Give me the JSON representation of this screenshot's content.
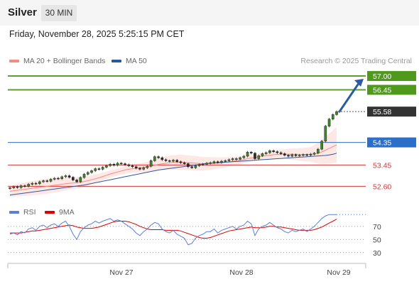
{
  "header": {
    "instrument": "Silver",
    "timeframe": "30 MIN",
    "datetime": "Friday, November 28, 2025 5:25:15 PM CET"
  },
  "legend": {
    "ma20": "MA 20 + Bollinger Bands",
    "ma50": "MA 50",
    "credit": "Research © 2025 Trading Central",
    "colors": {
      "ma20": "#f28b82",
      "ma50": "#2c5aa0"
    }
  },
  "rsi_legend": {
    "rsi": "RSI",
    "ma9": "9MA",
    "colors": {
      "rsi": "#5b7fd6",
      "ma9": "#e00000"
    }
  },
  "chart_data": [
    {
      "type": "candlestick",
      "title": "",
      "x_ticks": [
        "Nov 27",
        "Nov 28",
        "Nov 29"
      ],
      "ylim": [
        52.1,
        57.2
      ],
      "levels": [
        {
          "value": 57.0,
          "label": "57.00",
          "kind": "target",
          "color": "#5aa02c"
        },
        {
          "value": 56.45,
          "label": "56.45",
          "kind": "target",
          "color": "#5aa02c"
        },
        {
          "value": 55.58,
          "label": "55.58",
          "kind": "last",
          "color": "#333333"
        },
        {
          "value": 54.35,
          "label": "54.35",
          "kind": "pivot",
          "color": "#2c6fc9"
        },
        {
          "value": 53.45,
          "label": "53.45",
          "kind": "support",
          "color": "#d23a3a"
        },
        {
          "value": 52.6,
          "label": "52.60",
          "kind": "support",
          "color": "#d23a3a"
        }
      ],
      "close": [
        52.54,
        52.58,
        52.55,
        52.62,
        52.6,
        52.68,
        52.72,
        52.7,
        52.78,
        52.82,
        52.8,
        52.88,
        52.92,
        52.9,
        52.98,
        53.02,
        52.96,
        52.85,
        52.78,
        52.95,
        53.08,
        53.15,
        53.22,
        53.3,
        53.28,
        53.36,
        53.42,
        53.48,
        53.44,
        53.52,
        53.5,
        53.46,
        53.42,
        53.38,
        53.32,
        53.28,
        53.34,
        53.4,
        53.62,
        53.78,
        53.74,
        53.66,
        53.62,
        53.6,
        53.64,
        53.58,
        53.54,
        53.5,
        53.38,
        53.34,
        53.42,
        53.46,
        53.48,
        53.52,
        53.54,
        53.58,
        53.55,
        53.6,
        53.62,
        53.66,
        53.7,
        53.68,
        53.74,
        53.8,
        53.96,
        53.92,
        53.7,
        53.82,
        53.9,
        53.94,
        54.02,
        53.98,
        53.94,
        53.9,
        53.84,
        53.8,
        53.86,
        53.82,
        53.84,
        53.86,
        53.84,
        53.88,
        53.92,
        54.08,
        54.4,
        55.0,
        55.28,
        55.46,
        55.58
      ],
      "ma20": [
        52.4,
        52.42,
        52.44,
        52.46,
        52.48,
        52.5,
        52.52,
        52.54,
        52.56,
        52.58,
        52.6,
        52.62,
        52.64,
        52.66,
        52.68,
        52.7,
        52.72,
        52.73,
        52.74,
        52.76,
        52.79,
        52.82,
        52.86,
        52.9,
        52.94,
        52.99,
        53.04,
        53.09,
        53.13,
        53.17,
        53.21,
        53.25,
        53.28,
        53.3,
        53.32,
        53.34,
        53.35,
        53.37,
        53.4,
        53.44,
        53.47,
        53.5,
        53.52,
        53.54,
        53.55,
        53.56,
        53.56,
        53.55,
        53.54,
        53.53,
        53.52,
        53.51,
        53.5,
        53.5,
        53.51,
        53.52,
        53.53,
        53.54,
        53.56,
        53.58,
        53.6,
        53.62,
        53.64,
        53.66,
        53.7,
        53.73,
        53.75,
        53.78,
        53.8,
        53.82,
        53.84,
        53.86,
        53.87,
        53.88,
        53.88,
        53.88,
        53.88,
        53.88,
        53.87,
        53.87,
        53.87,
        53.88,
        53.89,
        53.92,
        53.97,
        54.04,
        54.11,
        54.18,
        54.25
      ],
      "ma50": [
        52.25,
        52.27,
        52.29,
        52.31,
        52.33,
        52.35,
        52.37,
        52.39,
        52.41,
        52.43,
        52.45,
        52.47,
        52.49,
        52.51,
        52.53,
        52.55,
        52.57,
        52.59,
        52.61,
        52.63,
        52.65,
        52.68,
        52.71,
        52.74,
        52.77,
        52.8,
        52.83,
        52.86,
        52.89,
        52.92,
        52.95,
        52.98,
        53.01,
        53.04,
        53.07,
        53.1,
        53.13,
        53.16,
        53.19,
        53.22,
        53.25,
        53.27,
        53.29,
        53.31,
        53.33,
        53.35,
        53.37,
        53.39,
        53.41,
        53.43,
        53.45,
        53.47,
        53.49,
        53.51,
        53.52,
        53.53,
        53.54,
        53.55,
        53.56,
        53.57,
        53.58,
        53.59,
        53.6,
        53.61,
        53.62,
        53.63,
        53.64,
        53.65,
        53.66,
        53.67,
        53.68,
        53.69,
        53.7,
        53.71,
        53.72,
        53.73,
        53.74,
        53.75,
        53.76,
        53.77,
        53.78,
        53.79,
        53.8,
        53.81,
        53.82,
        53.83,
        53.85,
        53.88,
        53.92
      ]
    },
    {
      "type": "line",
      "title": "RSI",
      "ylim": [
        20,
        85
      ],
      "y_ticks": [
        30,
        50,
        70
      ],
      "rsi": [
        58,
        60,
        57,
        62,
        60,
        66,
        68,
        64,
        70,
        72,
        68,
        72,
        74,
        70,
        75,
        78,
        70,
        58,
        50,
        62,
        68,
        72,
        74,
        78,
        75,
        78,
        80,
        82,
        78,
        80,
        78,
        74,
        70,
        66,
        60,
        56,
        62,
        66,
        72,
        76,
        74,
        66,
        62,
        60,
        64,
        58,
        55,
        52,
        42,
        44,
        52,
        56,
        58,
        62,
        62,
        66,
        60,
        64,
        66,
        68,
        70,
        66,
        70,
        72,
        78,
        74,
        56,
        66,
        70,
        72,
        76,
        72,
        68,
        66,
        62,
        60,
        64,
        62,
        64,
        66,
        62,
        66,
        70,
        76,
        82,
        86,
        88,
        88,
        88
      ],
      "ma9": [
        60,
        60,
        60,
        60,
        61,
        62,
        63,
        63,
        64,
        65,
        66,
        67,
        68,
        69,
        70,
        71,
        72,
        71,
        69,
        68,
        67,
        67,
        67,
        68,
        69,
        71,
        73,
        75,
        77,
        78,
        78,
        78,
        77,
        75,
        73,
        70,
        68,
        66,
        65,
        65,
        65,
        65,
        64,
        64,
        64,
        64,
        63,
        61,
        59,
        57,
        55,
        53,
        52,
        52,
        53,
        55,
        57,
        59,
        61,
        63,
        64,
        65,
        66,
        67,
        68,
        69,
        68,
        68,
        68,
        69,
        70,
        70,
        69,
        69,
        68,
        67,
        66,
        65,
        64,
        64,
        64,
        64,
        65,
        67,
        69,
        72,
        75,
        78,
        81
      ]
    }
  ]
}
